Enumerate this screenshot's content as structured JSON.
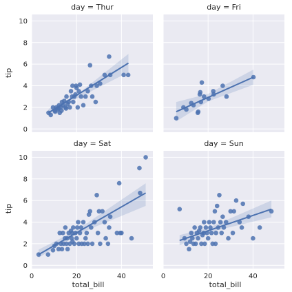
{
  "chart_data": {
    "type": "scatter",
    "facet_by": "day",
    "xlabel": "total_bill",
    "ylabel": "tip",
    "xlim": [
      0,
      54
    ],
    "ylim": [
      -0.3,
      10.6
    ],
    "x_ticks": [
      0,
      20,
      40
    ],
    "y_ticks": [
      0,
      2,
      4,
      6,
      8,
      10
    ],
    "grid": true,
    "background": "#eaeaf2",
    "grid_color": "#ffffff",
    "point_color": "#4c72b0",
    "line_color": "#4c72b0",
    "band_color": "#4c72b0",
    "panels": [
      {
        "title": "day = Thur",
        "regression": {
          "x0": 7.5,
          "x1": 43.1,
          "y0": 1.5,
          "y1": 6.1
        },
        "band": [
          [
            7.5,
            1.15,
            1.85
          ],
          [
            20,
            2.8,
            3.15
          ],
          [
            43.1,
            5.25,
            6.95
          ]
        ],
        "points": [
          [
            7.5,
            1.5
          ],
          [
            8.5,
            1.3
          ],
          [
            9.5,
            2.0
          ],
          [
            10.3,
            1.7
          ],
          [
            10.5,
            1.6
          ],
          [
            11.0,
            2.0
          ],
          [
            11.5,
            1.8
          ],
          [
            12.0,
            1.9
          ],
          [
            12.2,
            2.2
          ],
          [
            12.5,
            1.5
          ],
          [
            13.0,
            2.0
          ],
          [
            13.3,
            1.7
          ],
          [
            13.5,
            2.5
          ],
          [
            14.0,
            2.2
          ],
          [
            14.5,
            2.6
          ],
          [
            15.0,
            2.0
          ],
          [
            15.3,
            1.9
          ],
          [
            15.5,
            3.0
          ],
          [
            16.0,
            2.3
          ],
          [
            16.5,
            2.5
          ],
          [
            17.0,
            2.0
          ],
          [
            17.5,
            3.5
          ],
          [
            18.0,
            3.0
          ],
          [
            18.2,
            4.0
          ],
          [
            18.5,
            2.5
          ],
          [
            19.0,
            3.0
          ],
          [
            19.5,
            3.2
          ],
          [
            19.8,
            4.0
          ],
          [
            20.0,
            3.8
          ],
          [
            20.5,
            2.0
          ],
          [
            21.0,
            3.5
          ],
          [
            21.5,
            4.1
          ],
          [
            22.0,
            3.0
          ],
          [
            23.0,
            2.2
          ],
          [
            24.0,
            3.0
          ],
          [
            25.0,
            3.5
          ],
          [
            26.0,
            5.9
          ],
          [
            26.5,
            4.0
          ],
          [
            27.0,
            3.0
          ],
          [
            28.5,
            2.5
          ],
          [
            29.0,
            4.0
          ],
          [
            30.5,
            4.2
          ],
          [
            32.5,
            5.0
          ],
          [
            34.5,
            6.7
          ],
          [
            35.0,
            5.0
          ],
          [
            41.0,
            5.0
          ],
          [
            43.0,
            5.0
          ]
        ]
      },
      {
        "title": "day = Fri",
        "regression": {
          "x0": 5.8,
          "x1": 40.2,
          "y0": 1.6,
          "y1": 4.8
        },
        "band": [
          [
            5.8,
            0.7,
            2.5
          ],
          [
            20,
            2.55,
            3.25
          ],
          [
            40.2,
            4.1,
            5.5
          ]
        ],
        "points": [
          [
            5.8,
            1.0
          ],
          [
            9.0,
            2.0
          ],
          [
            10.3,
            1.8
          ],
          [
            12.5,
            2.4
          ],
          [
            13.5,
            2.2
          ],
          [
            15.4,
            1.5
          ],
          [
            15.6,
            1.6
          ],
          [
            16.3,
            3.2
          ],
          [
            16.5,
            3.4
          ],
          [
            16.8,
            2.5
          ],
          [
            17.2,
            4.3
          ],
          [
            18.2,
            3.0
          ],
          [
            20.2,
            2.8
          ],
          [
            22.3,
            3.5
          ],
          [
            22.5,
            3.2
          ],
          [
            26.5,
            4.0
          ],
          [
            28.2,
            3.0
          ],
          [
            40.2,
            4.8
          ]
        ]
      },
      {
        "title": "day = Sat",
        "regression": {
          "x0": 3.1,
          "x1": 50.8,
          "y0": 1.0,
          "y1": 6.7
        },
        "band": [
          [
            3.1,
            0.7,
            1.45
          ],
          [
            20,
            2.85,
            3.25
          ],
          [
            50.8,
            5.5,
            7.6
          ]
        ],
        "points": [
          [
            3.1,
            1.0
          ],
          [
            7.3,
            1.0
          ],
          [
            9.5,
            1.4
          ],
          [
            10.1,
            1.8
          ],
          [
            11.0,
            2.0
          ],
          [
            12.0,
            1.5
          ],
          [
            12.5,
            3.0
          ],
          [
            13.0,
            2.0
          ],
          [
            13.5,
            1.5
          ],
          [
            13.9,
            3.0
          ],
          [
            14.2,
            2.0
          ],
          [
            14.8,
            2.5
          ],
          [
            15.0,
            3.5
          ],
          [
            15.5,
            2.0
          ],
          [
            15.8,
            2.5
          ],
          [
            16.0,
            1.5
          ],
          [
            16.5,
            3.0
          ],
          [
            17.0,
            2.0
          ],
          [
            17.5,
            3.2
          ],
          [
            17.8,
            2.5
          ],
          [
            18.0,
            3.0
          ],
          [
            18.2,
            2.2
          ],
          [
            18.5,
            3.5
          ],
          [
            19.0,
            2.0
          ],
          [
            19.5,
            3.0
          ],
          [
            20.0,
            2.5
          ],
          [
            20.3,
            3.5
          ],
          [
            20.7,
            4.0
          ],
          [
            21.0,
            2.0
          ],
          [
            21.5,
            3.0
          ],
          [
            22.0,
            3.5
          ],
          [
            22.3,
            2.0
          ],
          [
            23.0,
            4.0
          ],
          [
            23.5,
            2.0
          ],
          [
            24.0,
            2.5
          ],
          [
            24.5,
            3.0
          ],
          [
            25.0,
            2.0
          ],
          [
            25.5,
            4.7
          ],
          [
            26.0,
            5.0
          ],
          [
            26.5,
            3.5
          ],
          [
            27.0,
            2.0
          ],
          [
            28.0,
            4.0
          ],
          [
            29.0,
            6.5
          ],
          [
            29.5,
            3.0
          ],
          [
            30.0,
            5.0
          ],
          [
            30.5,
            2.0
          ],
          [
            31.5,
            5.0
          ],
          [
            32.5,
            4.0
          ],
          [
            33.0,
            2.5
          ],
          [
            34.0,
            2.0
          ],
          [
            34.5,
            3.5
          ],
          [
            35.0,
            4.5
          ],
          [
            38.0,
            3.0
          ],
          [
            39.0,
            7.6
          ],
          [
            39.5,
            3.0
          ],
          [
            40.0,
            3.0
          ],
          [
            44.5,
            2.5
          ],
          [
            48.0,
            9.0
          ],
          [
            48.3,
            6.7
          ],
          [
            50.8,
            10.0
          ]
        ]
      },
      {
        "title": "day = Sun",
        "regression": {
          "x0": 7.3,
          "x1": 48.2,
          "y0": 2.3,
          "y1": 5.2
        },
        "band": [
          [
            7.3,
            1.85,
            2.8
          ],
          [
            20,
            3.05,
            3.45
          ],
          [
            48.2,
            4.45,
            6.0
          ]
        ],
        "points": [
          [
            7.3,
            5.2
          ],
          [
            9.5,
            2.5
          ],
          [
            10.3,
            2.0
          ],
          [
            11.5,
            1.5
          ],
          [
            12.0,
            2.2
          ],
          [
            12.5,
            3.0
          ],
          [
            13.0,
            2.5
          ],
          [
            13.5,
            2.0
          ],
          [
            14.0,
            3.5
          ],
          [
            14.5,
            2.0
          ],
          [
            15.0,
            3.0
          ],
          [
            15.5,
            2.5
          ],
          [
            16.0,
            3.2
          ],
          [
            16.5,
            3.5
          ],
          [
            17.0,
            2.0
          ],
          [
            17.5,
            2.8
          ],
          [
            18.0,
            3.0
          ],
          [
            18.2,
            4.0
          ],
          [
            18.5,
            2.0
          ],
          [
            19.0,
            3.5
          ],
          [
            19.5,
            3.0
          ],
          [
            20.0,
            2.5
          ],
          [
            20.5,
            4.0
          ],
          [
            21.0,
            3.5
          ],
          [
            21.5,
            3.0
          ],
          [
            22.0,
            2.0
          ],
          [
            22.5,
            4.0
          ],
          [
            23.0,
            5.0
          ],
          [
            23.3,
            2.0
          ],
          [
            23.5,
            3.0
          ],
          [
            24.0,
            5.5
          ],
          [
            24.5,
            3.5
          ],
          [
            25.0,
            6.5
          ],
          [
            25.5,
            4.0
          ],
          [
            26.0,
            3.0
          ],
          [
            26.5,
            4.5
          ],
          [
            27.0,
            3.5
          ],
          [
            28.0,
            4.0
          ],
          [
            29.0,
            2.5
          ],
          [
            30.0,
            5.0
          ],
          [
            31.0,
            3.0
          ],
          [
            31.5,
            5.0
          ],
          [
            32.5,
            6.0
          ],
          [
            34.0,
            4.0
          ],
          [
            35.0,
            3.5
          ],
          [
            35.5,
            5.7
          ],
          [
            38.0,
            4.5
          ],
          [
            40.0,
            2.5
          ],
          [
            43.0,
            3.5
          ],
          [
            48.2,
            5.0
          ]
        ]
      }
    ]
  }
}
